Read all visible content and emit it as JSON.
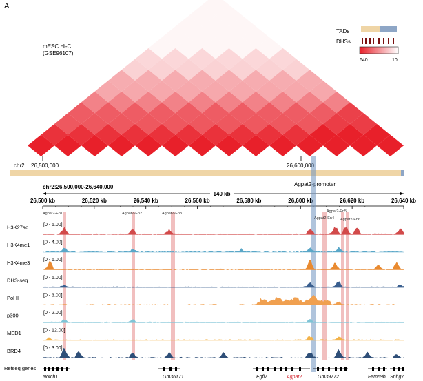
{
  "panel_label": "A",
  "hic": {
    "title_line1": "mESC Hi-C",
    "title_line2": "(GSE96107)"
  },
  "legend": {
    "tads_label": "TADs",
    "dhss_label": "DHSs",
    "scale_max": "640",
    "scale_min": "10",
    "colors": {
      "tad_a": "#efd5a6",
      "tad_b": "#8ea6c6",
      "dhs": "#7a1010",
      "heat_high": "#e8202a",
      "heat_low": "#ffffff"
    }
  },
  "chr_bar": {
    "chrom": "chr2",
    "left_pos": "26,500,000",
    "right_pos": "26,600,000"
  },
  "locus": {
    "region": "chr2:26,500,000-26,640,000",
    "width": "140 kb",
    "promoter_label": "Agpat2-promoter",
    "ticks": [
      "26,500 kb",
      "26,520 kb",
      "26,540 kb",
      "26,560 kb",
      "26,580 kb",
      "26,600 kb",
      "26,620 kb",
      "26,640 kb"
    ]
  },
  "enhancers": [
    "Agpat2-En1",
    "Agpat2-En2",
    "Agpat2-En3",
    "Agpat2-En4",
    "Agpat2-En5",
    "Agpat2-En6"
  ],
  "tracks": [
    {
      "name": "H3K27ac",
      "range": "[0 - 5.00]",
      "color": "#d24a4a"
    },
    {
      "name": "H3K4me1",
      "range": "[0 - 4.00]",
      "color": "#5aa7c8"
    },
    {
      "name": "H3K4me3",
      "range": "[0 - 6.00]",
      "color": "#e98a30"
    },
    {
      "name": "DHS-seq",
      "range": "[0 - 5.00]",
      "color": "#3a5f8f"
    },
    {
      "name": "Pol II",
      "range": "[0 - 3.00]",
      "color": "#f0a050"
    },
    {
      "name": "p300",
      "range": "[0 - 2.00]",
      "color": "#7fc4d6"
    },
    {
      "name": "MED1",
      "range": "[0 - 12.00]",
      "color": "#f2b24a"
    },
    {
      "name": "BRD4",
      "range": "[0 - 3.00]",
      "color": "#2f4f78"
    }
  ],
  "genes": {
    "label": "Refseq genes",
    "items": [
      "Notch1",
      "Gm36171",
      "Egfl7",
      "Agpat2",
      "Gm39772",
      "Fam69b",
      "Snhg7"
    ],
    "highlight": "Agpat2"
  }
}
